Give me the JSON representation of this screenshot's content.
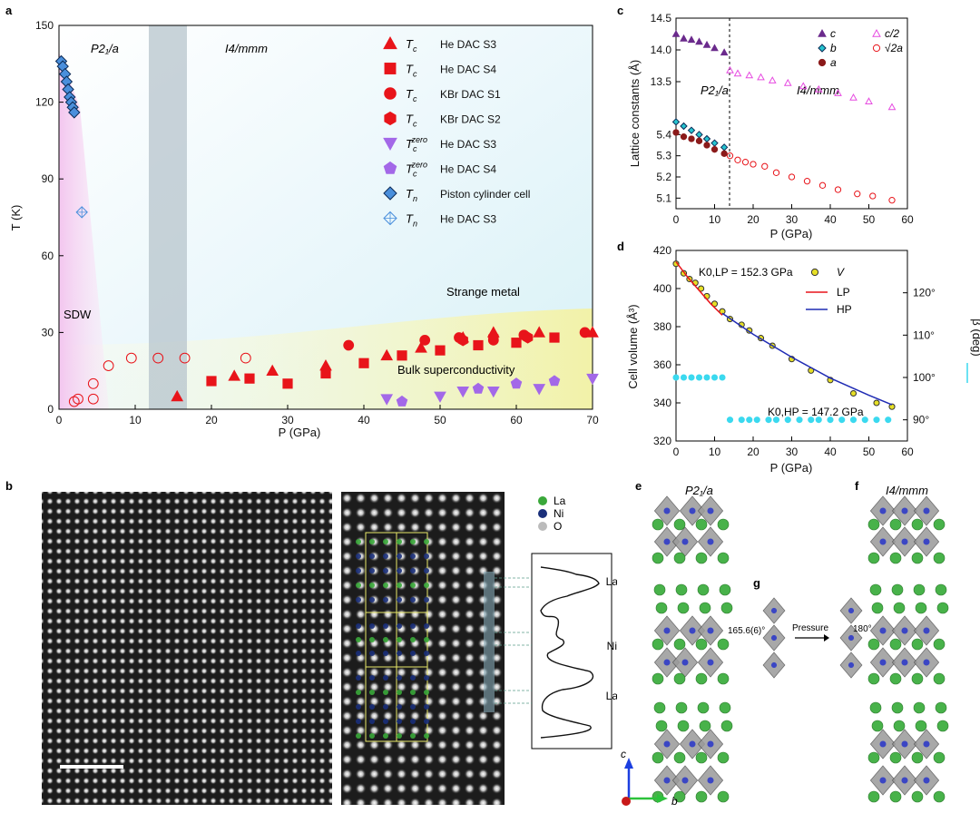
{
  "panels": {
    "a": {
      "letter": "a",
      "phases": [
        "P2₁/a",
        "I4/mmm"
      ],
      "regions": [
        "SDW",
        "Strange metal",
        "Bulk superconductivity"
      ],
      "xlabel": "P (GPa)",
      "ylabel": "T (K)",
      "xticks": [
        "0",
        "10",
        "20",
        "30",
        "40",
        "50",
        "60",
        "70"
      ],
      "yticks": [
        "0",
        "30",
        "60",
        "90",
        "120",
        "150"
      ],
      "legend": [
        {
          "sym": "Tc",
          "label": "He DAC S3",
          "marker": "triangle"
        },
        {
          "sym": "Tc",
          "label": "He DAC S4",
          "marker": "square"
        },
        {
          "sym": "Tc",
          "label": "KBr DAC S1",
          "marker": "circle"
        },
        {
          "sym": "Tc",
          "label": "KBr DAC S2",
          "marker": "hexagon"
        },
        {
          "sym": "Tc zero",
          "label": "He DAC S3",
          "marker": "tri-down"
        },
        {
          "sym": "Tc zero",
          "label": "He DAC S4",
          "marker": "pentagon"
        },
        {
          "sym": "TN",
          "label": "Piston cylinder cell",
          "marker": "diamond"
        },
        {
          "sym": "TN",
          "label": "He DAC S3",
          "marker": "diamond-open"
        }
      ]
    },
    "c": {
      "letter": "c",
      "phases": [
        "P2₁/a",
        "I4/mmm"
      ],
      "xlabel": "P (GPa)",
      "ylabel": "Lattice constants (Å)",
      "xticks": [
        "0",
        "10",
        "20",
        "30",
        "40",
        "50",
        "60"
      ],
      "yticks_top": [
        "13.5",
        "14.0",
        "14.5"
      ],
      "yticks_bottom": [
        "5.1",
        "5.2",
        "5.3",
        "5.4"
      ],
      "legend": [
        "c",
        "c/2",
        "b",
        "√2a",
        "a"
      ]
    },
    "d": {
      "letter": "d",
      "xlabel": "P (GPa)",
      "ylabel": "Cell volume (Å³)",
      "y2label": "β (deg)",
      "xticks": [
        "0",
        "10",
        "20",
        "30",
        "40",
        "50",
        "60"
      ],
      "yticks": [
        "320",
        "340",
        "360",
        "380",
        "400",
        "420"
      ],
      "y2ticks": [
        "90°",
        "100°",
        "110°",
        "120°"
      ],
      "k_lp": "K0,LP = 152.3 GPa",
      "k_hp": "K0,HP = 147.2 GPa",
      "legend": [
        "V",
        "LP",
        "HP"
      ]
    },
    "b": {
      "letter": "b",
      "atoms": [
        "La",
        "Ni",
        "O"
      ],
      "profile_labels": [
        "La",
        "Ni",
        "La"
      ]
    },
    "e": {
      "letter": "e",
      "title": "P2₁/a"
    },
    "f": {
      "letter": "f",
      "title": "I4/mmm"
    },
    "g": {
      "letter": "g",
      "angle1": "165.6(6)°",
      "pressure": "Pressure",
      "angle2": "180°"
    },
    "axes": {
      "c": "c",
      "a": "a",
      "b": "b"
    }
  },
  "chart_data": [
    {
      "type": "scatter",
      "panel": "a",
      "xlabel": "P (GPa)",
      "ylabel": "T (K)",
      "xlim": [
        0,
        70
      ],
      "ylim": [
        0,
        150
      ],
      "series": [
        {
          "name": "Tc He DAC S3",
          "marker": "triangle",
          "color": "#e8141a",
          "x": [
            15.5,
            23,
            28,
            35,
            43,
            47.5,
            53,
            57,
            63,
            70
          ],
          "y": [
            5,
            13,
            15,
            17,
            21,
            24,
            28,
            30,
            30,
            30
          ]
        },
        {
          "name": "Tc He DAC S4",
          "marker": "square",
          "color": "#e8141a",
          "x": [
            20,
            25,
            30,
            35,
            40,
            45,
            50,
            55,
            60,
            65
          ],
          "y": [
            11,
            12,
            10,
            14,
            18,
            21,
            23,
            25,
            26,
            28
          ]
        },
        {
          "name": "Tc KBr DAC S1",
          "marker": "circle",
          "color": "#e8141a",
          "x": [
            38,
            48,
            52.5,
            57,
            61,
            69
          ],
          "y": [
            25,
            27,
            28,
            27,
            29,
            30
          ]
        },
        {
          "name": "Tc KBr DAC S2",
          "marker": "hexagon",
          "color": "#e8141a",
          "x": [
            53,
            57,
            61.5
          ],
          "y": [
            27,
            28,
            28
          ]
        },
        {
          "name": "Tc zero He DAC S3",
          "marker": "tri-down",
          "color": "#a368e8",
          "x": [
            43,
            50,
            53,
            57,
            63,
            70
          ],
          "y": [
            4,
            5,
            7,
            7,
            8,
            12
          ]
        },
        {
          "name": "Tc zero He DAC S4",
          "marker": "pentagon",
          "color": "#a368e8",
          "x": [
            45,
            55,
            60,
            65
          ],
          "y": [
            3,
            8,
            10,
            11
          ]
        },
        {
          "name": "TN Piston cylinder cell",
          "marker": "diamond",
          "color": "#4a8fdc",
          "x": [
            0.3,
            0.5,
            0.8,
            1.0,
            1.2,
            1.4,
            1.6,
            1.8,
            2.0
          ],
          "y": [
            136,
            134,
            131,
            128,
            125,
            122,
            120,
            118,
            116
          ]
        },
        {
          "name": "TN He DAC S3",
          "marker": "diamond-open",
          "color": "#4a8fdc",
          "x": [
            3
          ],
          "y": [
            77
          ]
        },
        {
          "name": "open circles",
          "marker": "circle-open",
          "color": "#e8141a",
          "x": [
            2,
            2.5,
            4.5,
            4.5,
            6.5,
            9.5,
            13,
            16.5,
            24.5
          ],
          "y": [
            3,
            4,
            10,
            4,
            17,
            20,
            20,
            20,
            20
          ]
        }
      ]
    },
    {
      "type": "scatter",
      "panel": "c",
      "xlabel": "P (GPa)",
      "ylabel": "Lattice constants (Å)",
      "xlim": [
        0,
        60
      ],
      "series": [
        {
          "name": "c",
          "marker": "triangle",
          "color": "#6b2a8c",
          "x": [
            0,
            2,
            4,
            6,
            8,
            10,
            12.5
          ],
          "y": [
            14.25,
            14.18,
            14.16,
            14.13,
            14.08,
            14.03,
            13.96
          ]
        },
        {
          "name": "c/2",
          "marker": "triangle-open",
          "color": "#e64be0",
          "x": [
            14,
            16,
            19,
            22,
            25,
            29,
            33,
            37,
            42,
            46,
            50,
            56
          ],
          "y": [
            13.68,
            13.63,
            13.6,
            13.57,
            13.52,
            13.48,
            13.43,
            13.38,
            13.32,
            13.25,
            13.19,
            13.1
          ]
        },
        {
          "name": "b",
          "marker": "diamond",
          "color": "#25c4cf",
          "x": [
            0,
            2,
            4,
            6,
            8,
            10,
            12.5
          ],
          "y": [
            5.46,
            5.44,
            5.42,
            5.4,
            5.38,
            5.36,
            5.34
          ]
        },
        {
          "name": "√2a",
          "marker": "circle-open",
          "color": "#e8141a",
          "x": [
            14,
            16,
            18,
            20,
            23,
            26,
            30,
            34,
            38,
            42,
            47,
            51,
            56
          ],
          "y": [
            5.3,
            5.28,
            5.27,
            5.26,
            5.25,
            5.22,
            5.2,
            5.18,
            5.16,
            5.14,
            5.12,
            5.11,
            5.09
          ]
        },
        {
          "name": "a",
          "marker": "circle",
          "color": "#8b1a1a",
          "x": [
            0,
            2,
            4,
            6,
            8,
            10,
            12.5
          ],
          "y": [
            5.41,
            5.39,
            5.38,
            5.37,
            5.35,
            5.33,
            5.31
          ]
        }
      ]
    },
    {
      "type": "scatter",
      "panel": "d",
      "xlabel": "P (GPa)",
      "ylabel": "Cell volume (Å³)",
      "xlim": [
        0,
        60
      ],
      "ylim": [
        320,
        420
      ],
      "y2lim": [
        85,
        130
      ],
      "series": [
        {
          "name": "V",
          "marker": "circle",
          "color": "#e6df26",
          "x": [
            0,
            2,
            3.5,
            5,
            6.5,
            8,
            10,
            12,
            14,
            17,
            19,
            22,
            25,
            30,
            35,
            40,
            46,
            52,
            56
          ],
          "y": [
            413,
            408,
            405,
            403,
            400,
            396,
            392,
            388,
            384,
            381,
            378,
            374,
            370,
            363,
            357,
            352,
            345,
            340,
            338
          ]
        },
        {
          "name": "LP",
          "type": "line",
          "color": "#e8141a",
          "x": [
            0,
            3,
            6,
            9,
            12
          ],
          "y": [
            414,
            406,
            399,
            392,
            386
          ]
        },
        {
          "name": "HP",
          "type": "line",
          "color": "#1f2bb4",
          "x": [
            12,
            20,
            30,
            40,
            50,
            56
          ],
          "y": [
            387,
            376,
            364,
            353,
            344,
            339
          ]
        },
        {
          "name": "β",
          "marker": "circle",
          "color": "#3bd9ef",
          "axis": "right",
          "x": [
            0,
            2,
            4,
            6,
            8,
            10,
            12
          ],
          "y": [
            100,
            100,
            100,
            100,
            100,
            100,
            100
          ]
        },
        {
          "name": "β HP",
          "marker": "circle",
          "color": "#3bd9ef",
          "axis": "right",
          "x": [
            14,
            17,
            19,
            21,
            24,
            26,
            29,
            32,
            35,
            37,
            40,
            43,
            46,
            49,
            52,
            55
          ],
          "y": [
            90,
            90,
            90,
            90,
            90,
            90,
            90,
            90,
            90,
            90,
            90,
            90,
            90,
            90,
            90,
            90
          ]
        }
      ]
    }
  ]
}
